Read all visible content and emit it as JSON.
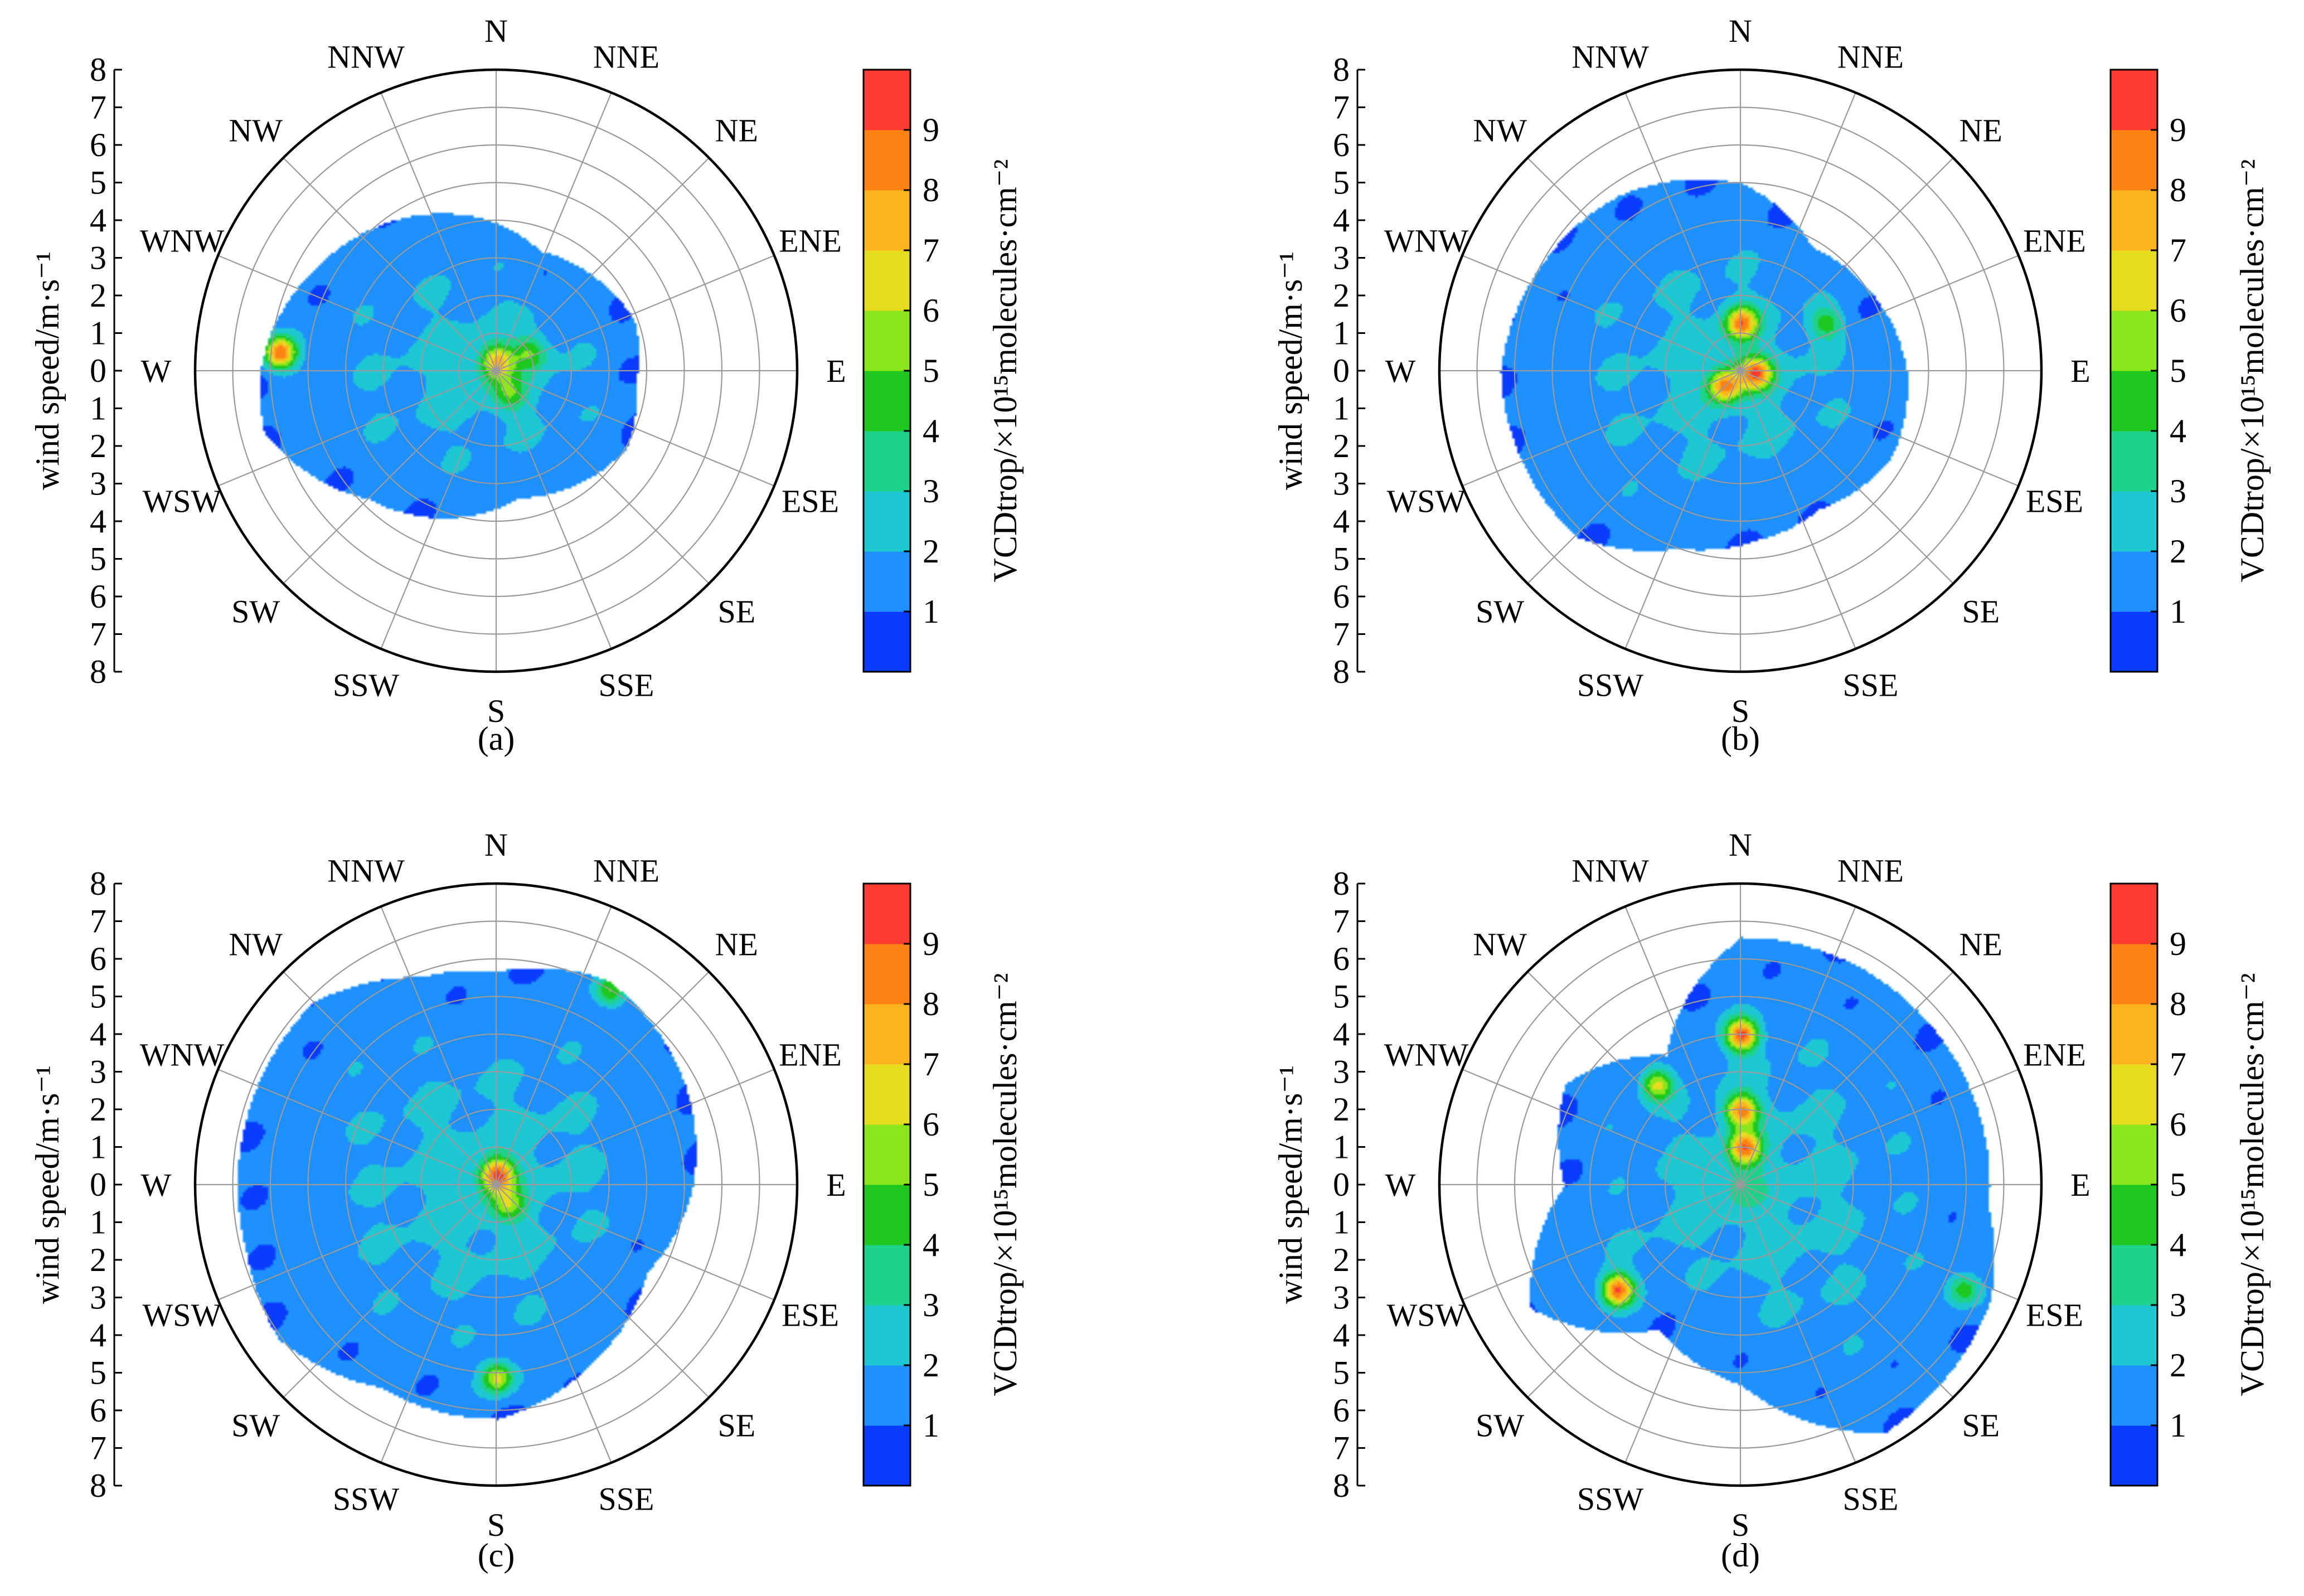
{
  "figure": {
    "colors": [
      "#0a3cff",
      "#1e90ff",
      "#1ec8d2",
      "#1ed28c",
      "#1ec81e",
      "#8ce61e",
      "#e6dc1e",
      "#fab41e",
      "#ff8214",
      "#ff3c32"
    ],
    "colorbar": {
      "ticks": [
        "1",
        "2",
        "3",
        "4",
        "5",
        "6",
        "7",
        "8",
        "9"
      ],
      "title": "VCDtrop/×10¹⁵molecules·cm⁻²"
    },
    "ylabel": "wind speed/m·s⁻¹",
    "speed_ticks": [
      "8",
      "7",
      "6",
      "5",
      "4",
      "3",
      "2",
      "1",
      "0",
      "1",
      "2",
      "3",
      "4",
      "5",
      "6",
      "7",
      "8"
    ],
    "directions": [
      "N",
      "NNE",
      "NE",
      "ENE",
      "E",
      "ESE",
      "SE",
      "SSE",
      "S",
      "SSW",
      "SW",
      "WSW",
      "W",
      "WNW",
      "NW",
      "NNW"
    ]
  },
  "chart_data": [
    {
      "type": "polar-contour",
      "panel_label": "(a)",
      "title": "",
      "radial_variable": "wind speed (m/s)",
      "radial_range": [
        0,
        8
      ],
      "angular_variable": "wind direction",
      "color_variable": "VCDtrop NO2 (×10^15 molecules/cm^2)",
      "color_range": [
        0,
        10
      ],
      "coverage_boundary": {
        "direction_deg": [
          20,
          45,
          70,
          95,
          120,
          150,
          170,
          195,
          225,
          255,
          270,
          280
        ],
        "wind_speed": [
          3.4,
          3.6,
          3.9,
          3.7,
          4.0,
          3.6,
          3.4,
          4.0,
          4.8,
          6.4,
          6.3,
          6.1
        ]
      },
      "hotspots": [
        {
          "direction_deg": 275,
          "wind_speed": 5.8,
          "vcd": 9.5
        },
        {
          "direction_deg": 0,
          "wind_speed": 0.3,
          "vcd": 6.5
        },
        {
          "direction_deg": 60,
          "wind_speed": 1.0,
          "vcd": 5.0
        },
        {
          "direction_deg": 150,
          "wind_speed": 0.7,
          "vcd": 4.5
        }
      ]
    },
    {
      "type": "polar-contour",
      "panel_label": "(b)",
      "title": "",
      "radial_variable": "wind speed (m/s)",
      "radial_range": [
        0,
        8
      ],
      "angular_variable": "wind direction",
      "color_variable": "VCDtrop NO2 (×10^15 molecules/cm^2)",
      "color_range": [
        0,
        10
      ],
      "coverage_boundary": {
        "direction_deg": [
          0,
          30,
          55,
          90,
          120,
          150,
          175,
          200,
          225,
          270,
          300,
          325
        ],
        "wind_speed": [
          5.0,
          3.8,
          4.0,
          4.4,
          4.6,
          4.2,
          4.5,
          5.0,
          6.2,
          6.4,
          6.0,
          5.7
        ]
      },
      "hotspots": [
        {
          "direction_deg": 0,
          "wind_speed": 1.3,
          "vcd": 8.5
        },
        {
          "direction_deg": 95,
          "wind_speed": 0.4,
          "vcd": 8.0
        },
        {
          "direction_deg": 230,
          "wind_speed": 0.6,
          "vcd": 8.0
        },
        {
          "direction_deg": 60,
          "wind_speed": 2.6,
          "vcd": 5.0
        }
      ]
    },
    {
      "type": "polar-contour",
      "panel_label": "(c)",
      "title": "",
      "radial_variable": "wind speed (m/s)",
      "radial_range": [
        0,
        8
      ],
      "angular_variable": "wind direction",
      "color_variable": "VCDtrop NO2 (×10^15 molecules/cm^2)",
      "color_range": [
        0,
        10
      ],
      "coverage_boundary": {
        "direction_deg": [
          0,
          28,
          60,
          90,
          120,
          150,
          180,
          210,
          235,
          255,
          285,
          315,
          340
        ],
        "wind_speed": [
          5.7,
          6.2,
          5.7,
          5.2,
          4.6,
          5.3,
          6.2,
          6.2,
          7.1,
          6.9,
          6.9,
          6.9,
          5.9
        ]
      },
      "hotspots": [
        {
          "direction_deg": 0,
          "wind_speed": 0.3,
          "vcd": 8.5
        },
        {
          "direction_deg": 180,
          "wind_speed": 5.1,
          "vcd": 7.0
        },
        {
          "direction_deg": 30,
          "wind_speed": 6.0,
          "vcd": 6.0
        },
        {
          "direction_deg": 150,
          "wind_speed": 0.6,
          "vcd": 5.0
        }
      ]
    },
    {
      "type": "polar-contour",
      "panel_label": "(d)",
      "title": "",
      "radial_variable": "wind speed (m/s)",
      "radial_range": [
        0,
        8
      ],
      "angular_variable": "wind direction",
      "color_variable": "VCDtrop NO2 (×10^15 molecules/cm^2)",
      "color_range": [
        0,
        10
      ],
      "coverage_boundary": {
        "direction_deg": [
          0,
          45,
          75,
          95,
          115,
          150,
          180,
          210,
          240,
          270,
          300,
          330
        ],
        "wind_speed": [
          6.6,
          6.6,
          6.6,
          6.6,
          7.3,
          7.6,
          5.3,
          4.4,
          6.5,
          4.7,
          5.4,
          4.0
        ]
      },
      "hotspots": [
        {
          "direction_deg": 0,
          "wind_speed": 4.0,
          "vcd": 9.5
        },
        {
          "direction_deg": 320,
          "wind_speed": 3.5,
          "vcd": 7.0
        },
        {
          "direction_deg": 230,
          "wind_speed": 4.3,
          "vcd": 9.5
        },
        {
          "direction_deg": 0,
          "wind_speed": 2.0,
          "vcd": 8.5
        },
        {
          "direction_deg": 5,
          "wind_speed": 1.0,
          "vcd": 8.5
        },
        {
          "direction_deg": 115,
          "wind_speed": 6.5,
          "vcd": 5.5
        }
      ]
    }
  ]
}
